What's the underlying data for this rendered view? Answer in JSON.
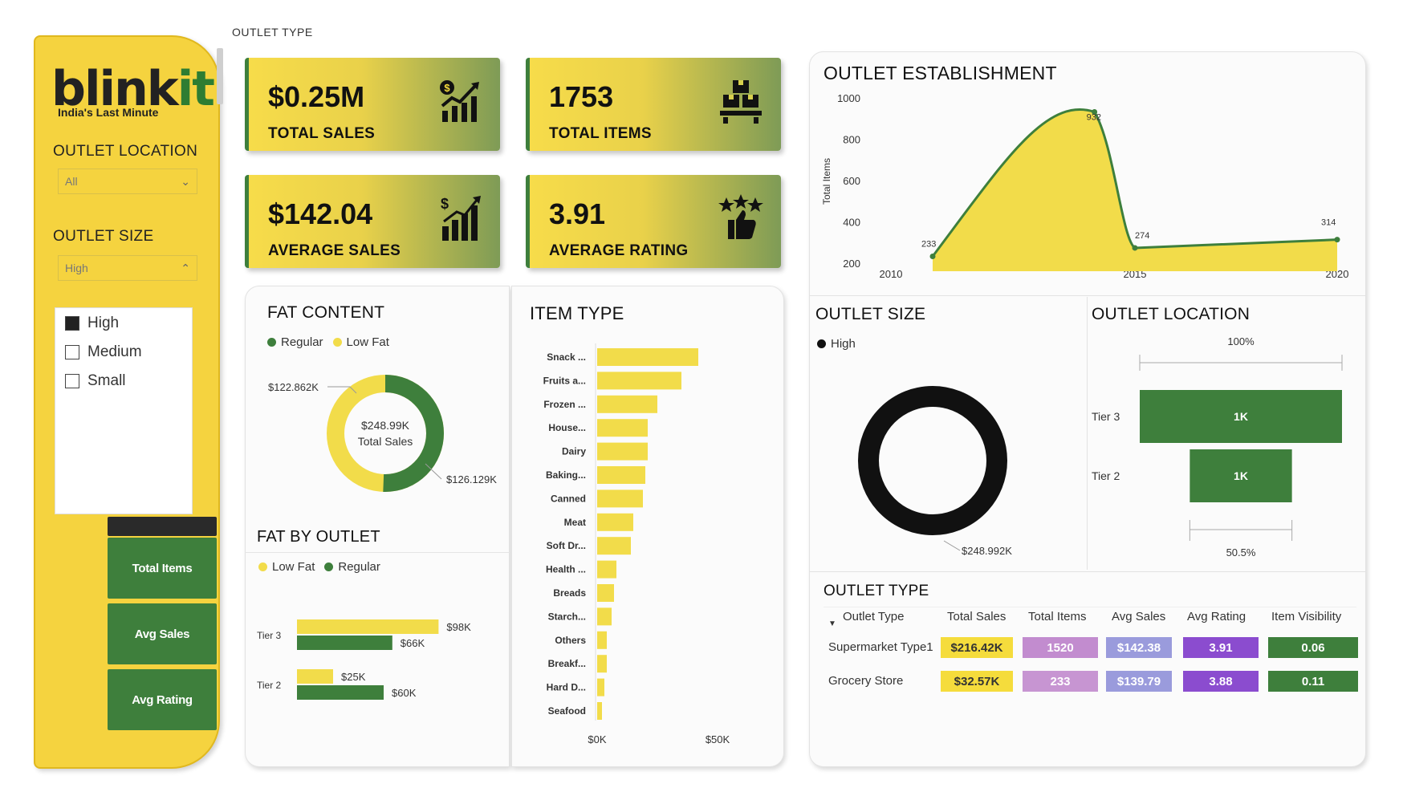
{
  "brand": {
    "logo_main": "blink",
    "logo_accent": "it",
    "tagline": "India's Last Minute"
  },
  "top_label": "OUTLET TYPE",
  "filters": {
    "location_label": "OUTLET LOCATION",
    "location_value": "All",
    "size_label": "OUTLET SIZE",
    "size_value": "High",
    "size_options": [
      {
        "label": "High",
        "checked": true
      },
      {
        "label": "Medium",
        "checked": false
      },
      {
        "label": "Small",
        "checked": false
      }
    ]
  },
  "side_buttons": [
    "Total Items",
    "Avg Sales",
    "Avg Rating"
  ],
  "kpis": [
    {
      "value": "$0.25M",
      "label": "TOTAL SALES",
      "icon": "sales-chart-icon"
    },
    {
      "value": "1753",
      "label": "TOTAL ITEMS",
      "icon": "boxes-icon"
    },
    {
      "value": "$142.04",
      "label": "AVERAGE SALES",
      "icon": "growth-icon"
    },
    {
      "value": "3.91",
      "label": "AVERAGE RATING",
      "icon": "rating-icon"
    }
  ],
  "fat_content": {
    "title": "FAT CONTENT",
    "legend": [
      "Regular",
      "Low Fat"
    ],
    "center_value": "$248.99K",
    "center_label": "Total Sales",
    "label_low_fat": "$122.862K",
    "label_regular": "$126.129K"
  },
  "fat_by_outlet": {
    "title": "FAT BY OUTLET",
    "legend": [
      "Low Fat",
      "Regular"
    ]
  },
  "item_type": {
    "title": "ITEM TYPE"
  },
  "outlet_establishment": {
    "title": "OUTLET ESTABLISHMENT",
    "ylabel": "Total Items"
  },
  "outlet_size": {
    "title": "OUTLET SIZE",
    "legend": "High",
    "value_label": "$248.992K"
  },
  "outlet_location": {
    "title": "OUTLET LOCATION"
  },
  "outlet_type": {
    "title": "OUTLET TYPE",
    "headers": [
      "Outlet Type",
      "Total Sales",
      "Total Items",
      "Avg Sales",
      "Avg Rating",
      "Item Visibility"
    ],
    "rows": [
      [
        "Supermarket Type1",
        "$216.42K",
        "1520",
        "$142.38",
        "3.91",
        "0.06"
      ],
      [
        "Grocery Store",
        "$32.57K",
        "233",
        "$139.79",
        "3.88",
        "0.11"
      ]
    ],
    "col_colors": [
      "#f5dc3c",
      "#c28ccf",
      "#9a9bdc",
      "#8b4ccf",
      "#3e7f3c"
    ]
  },
  "colors": {
    "yellow": "#f2dc4a",
    "green": "#3e7f3c",
    "dark": "#111111"
  },
  "chart_data": [
    {
      "type": "pie",
      "title": "FAT CONTENT",
      "categories": [
        "Regular",
        "Low Fat"
      ],
      "values": [
        126.129,
        122.862
      ],
      "unit": "$K",
      "total_label": "$248.99K"
    },
    {
      "type": "bar",
      "title": "FAT BY OUTLET",
      "categories": [
        "Tier 3",
        "Tier 2"
      ],
      "series": [
        {
          "name": "Low Fat",
          "values": [
            98,
            25
          ],
          "labels": [
            "$98K",
            "$25K"
          ]
        },
        {
          "name": "Regular",
          "values": [
            66,
            60
          ],
          "labels": [
            "$66K",
            "$60K"
          ]
        }
      ]
    },
    {
      "type": "bar",
      "title": "ITEM TYPE",
      "categories": [
        "Snack ...",
        "Fruits a...",
        "Frozen ...",
        "House...",
        "Dairy",
        "Baking...",
        "Canned",
        "Meat",
        "Soft Dr...",
        "Health ...",
        "Breads",
        "Starch...",
        "Others",
        "Breakf...",
        "Hard D...",
        "Seafood"
      ],
      "values": [
        42,
        35,
        25,
        21,
        21,
        20,
        19,
        15,
        14,
        8,
        7,
        6,
        4,
        4,
        3,
        2
      ],
      "xtick_labels": [
        "$0K",
        "$50K"
      ],
      "xlim": [
        0,
        50
      ]
    },
    {
      "type": "area",
      "title": "OUTLET ESTABLISHMENT",
      "x": [
        2010,
        2014,
        2015,
        2020
      ],
      "values": [
        233,
        932,
        274,
        314
      ],
      "ylabel": "Total Items",
      "xtick_labels": [
        "2010",
        "2015",
        "2020"
      ],
      "ytick_labels": [
        "200",
        "400",
        "600",
        "800",
        "1000"
      ],
      "ylim": [
        200,
        1000
      ]
    },
    {
      "type": "pie",
      "title": "OUTLET SIZE",
      "categories": [
        "High"
      ],
      "values": [
        248.992
      ],
      "label": "$248.992K"
    },
    {
      "type": "bar",
      "title": "OUTLET LOCATION",
      "categories": [
        "Tier 3",
        "Tier 2"
      ],
      "values": [
        100,
        50.5
      ],
      "labels": [
        "1K",
        "1K"
      ],
      "top_label": "100%",
      "bottom_label": "50.5%"
    }
  ]
}
